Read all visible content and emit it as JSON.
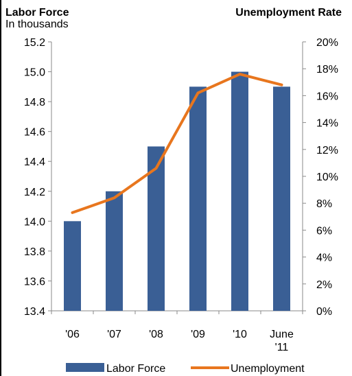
{
  "chart_data": {
    "type": "bar+line",
    "left_axis_title": "Labor Force",
    "left_axis_subtitle": "In thousands",
    "right_axis_title": "Unemployment Rate",
    "categories": [
      {
        "line1": "'06",
        "line2": ""
      },
      {
        "line1": "'07",
        "line2": ""
      },
      {
        "line1": "'08",
        "line2": ""
      },
      {
        "line1": "'09",
        "line2": ""
      },
      {
        "line1": "'10",
        "line2": ""
      },
      {
        "line1": "June",
        "line2": "'11"
      }
    ],
    "series": [
      {
        "name": "Labor Force",
        "type": "bar",
        "axis": "left",
        "color": "#3a5f95",
        "values": [
          14.0,
          14.2,
          14.5,
          14.9,
          15.0,
          14.9
        ]
      },
      {
        "name": "Unemployment",
        "type": "line",
        "axis": "right",
        "color": "#e8761e",
        "values": [
          7.3,
          8.4,
          10.6,
          16.2,
          17.6,
          16.8
        ]
      }
    ],
    "left_axis": {
      "min": 13.4,
      "max": 15.2,
      "ticks": [
        "13.4",
        "13.6",
        "13.8",
        "14.0",
        "14.2",
        "14.4",
        "14.6",
        "14.8",
        "15.0",
        "15.2"
      ]
    },
    "right_axis": {
      "min": 0,
      "max": 20,
      "ticks": [
        "0%",
        "2%",
        "4%",
        "6%",
        "8%",
        "10%",
        "12%",
        "14%",
        "16%",
        "18%",
        "20%"
      ]
    },
    "grid": false,
    "legend_position": "bottom"
  }
}
